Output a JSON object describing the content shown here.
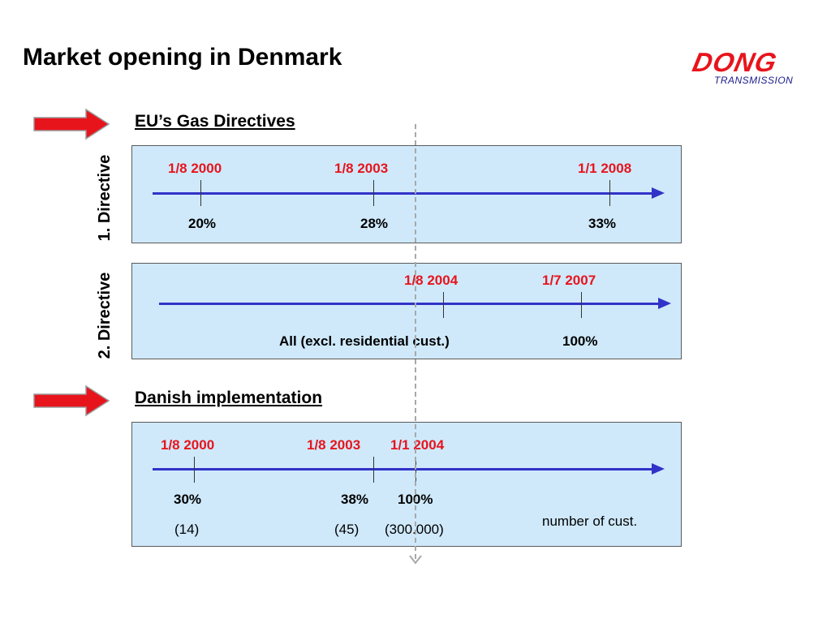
{
  "slide": {
    "title": "Market opening in Denmark",
    "logo": {
      "main": "DONG",
      "sub": "TRANSMISSION"
    }
  },
  "eu": {
    "heading": "EU’s Gas Directives",
    "directive1": {
      "label": "1. Directive",
      "milestones": [
        {
          "date": "1/8 2000",
          "value": "20%"
        },
        {
          "date": "1/8 2003",
          "value": "28%"
        },
        {
          "date": "1/1 2008",
          "value": "33%"
        }
      ]
    },
    "directive2": {
      "label": "2. Directive",
      "milestones": [
        {
          "date": "1/8 2004",
          "value": "All (excl. residential cust.)"
        },
        {
          "date": "1/7 2007",
          "value": "100%"
        }
      ]
    }
  },
  "danish": {
    "heading": "Danish implementation",
    "milestones": [
      {
        "date": "1/8 2000",
        "value": "30%",
        "count": "(14)"
      },
      {
        "date": "1/8 2003",
        "value": "38%",
        "count": "(45)"
      },
      {
        "date": "1/1 2004",
        "value": "100%",
        "count": "(300.000)"
      }
    ],
    "note": "number of cust."
  },
  "colors": {
    "panel_fill": "#cfe9fb",
    "timeline": "#3232c8",
    "date_text": "#e8141c",
    "pointer_arrow": "#e8141c"
  }
}
